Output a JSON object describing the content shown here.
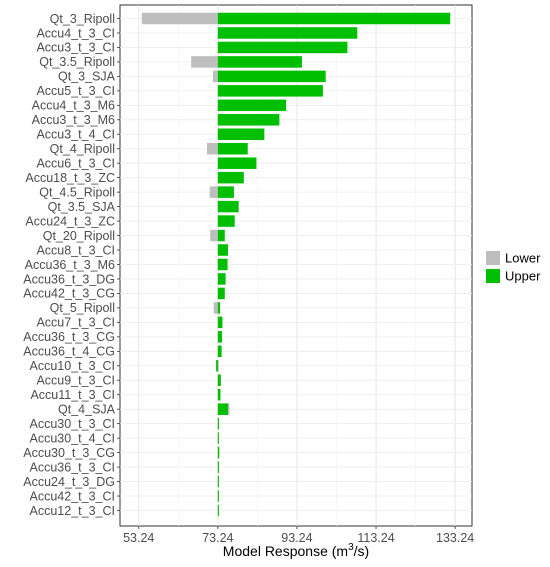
{
  "chart_data": {
    "type": "bar",
    "orientation": "horizontal",
    "baseline": 73.24,
    "xlabel": "Model Response (m³/s)",
    "xlabel_parts": [
      "Model Response (m",
      "3",
      "/s)"
    ],
    "ylabel": "",
    "xlim": [
      48.5,
      137.5
    ],
    "xticks": [
      "53.24",
      "73.24",
      "93.24",
      "113.24",
      "133.24"
    ],
    "grid": true,
    "legend_position": "right",
    "categories": [
      "Qt_3_Ripoll",
      "Accu4_t_3_CI",
      "Accu3_t_3_CI",
      "Qt_3.5_Ripoll",
      "Qt_3_SJA",
      "Accu5_t_3_CI",
      "Accu4_t_3_M6",
      "Accu3_t_3_M6",
      "Accu3_t_4_CI",
      "Qt_4_Ripoll",
      "Accu6_t_3_CI",
      "Accu18_t_3_ZC",
      "Qt_4.5_Ripoll",
      "Qt_3.5_SJA",
      "Accu24_t_3_ZC",
      "Qt_20_Ripoll",
      "Accu8_t_3_CI",
      "Accu36_t_3_M6",
      "Accu36_t_3_DG",
      "Accu42_t_3_CG",
      "Qt_5_Ripoll",
      "Accu7_t_3_CI",
      "Accu36_t_3_CG",
      "Accu36_t_4_CG",
      "Accu10_t_3_CI",
      "Accu9_t_3_CI",
      "Accu11_t_3_CI",
      "Qt_4_SJA",
      "Accu30_t_3_CI",
      "Accu30_t_4_CI",
      "Accu30_t_3_CG",
      "Accu36_t_3_CI",
      "Accu24_t_3_DG",
      "Accu42_t_3_CI",
      "Accu12_t_3_CI"
    ],
    "series": [
      {
        "name": "Lower",
        "color": "#bebebe",
        "values": [
          54.0,
          73.24,
          73.24,
          66.5,
          72.0,
          73.24,
          73.24,
          73.24,
          73.24,
          70.5,
          73.24,
          73.24,
          71.2,
          73.24,
          73.24,
          71.3,
          73.24,
          73.24,
          73.24,
          73.24,
          72.2,
          73.24,
          73.24,
          73.24,
          73.24,
          73.24,
          73.24,
          76.2,
          73.6,
          73.5,
          73.4,
          73.4,
          73.4,
          73.3,
          73.24
        ]
      },
      {
        "name": "Upper",
        "color": "#00bf00",
        "values": [
          132.0,
          108.5,
          106.0,
          94.5,
          100.5,
          99.8,
          90.5,
          88.8,
          85.0,
          80.8,
          83.0,
          79.8,
          77.3,
          78.5,
          77.5,
          75.0,
          75.8,
          75.7,
          75.2,
          75.0,
          73.8,
          74.4,
          74.3,
          74.2,
          72.8,
          74.0,
          73.9,
          75.8,
          73.5,
          73.4,
          73.6,
          73.5,
          73.5,
          73.5,
          73.5
        ]
      }
    ]
  }
}
